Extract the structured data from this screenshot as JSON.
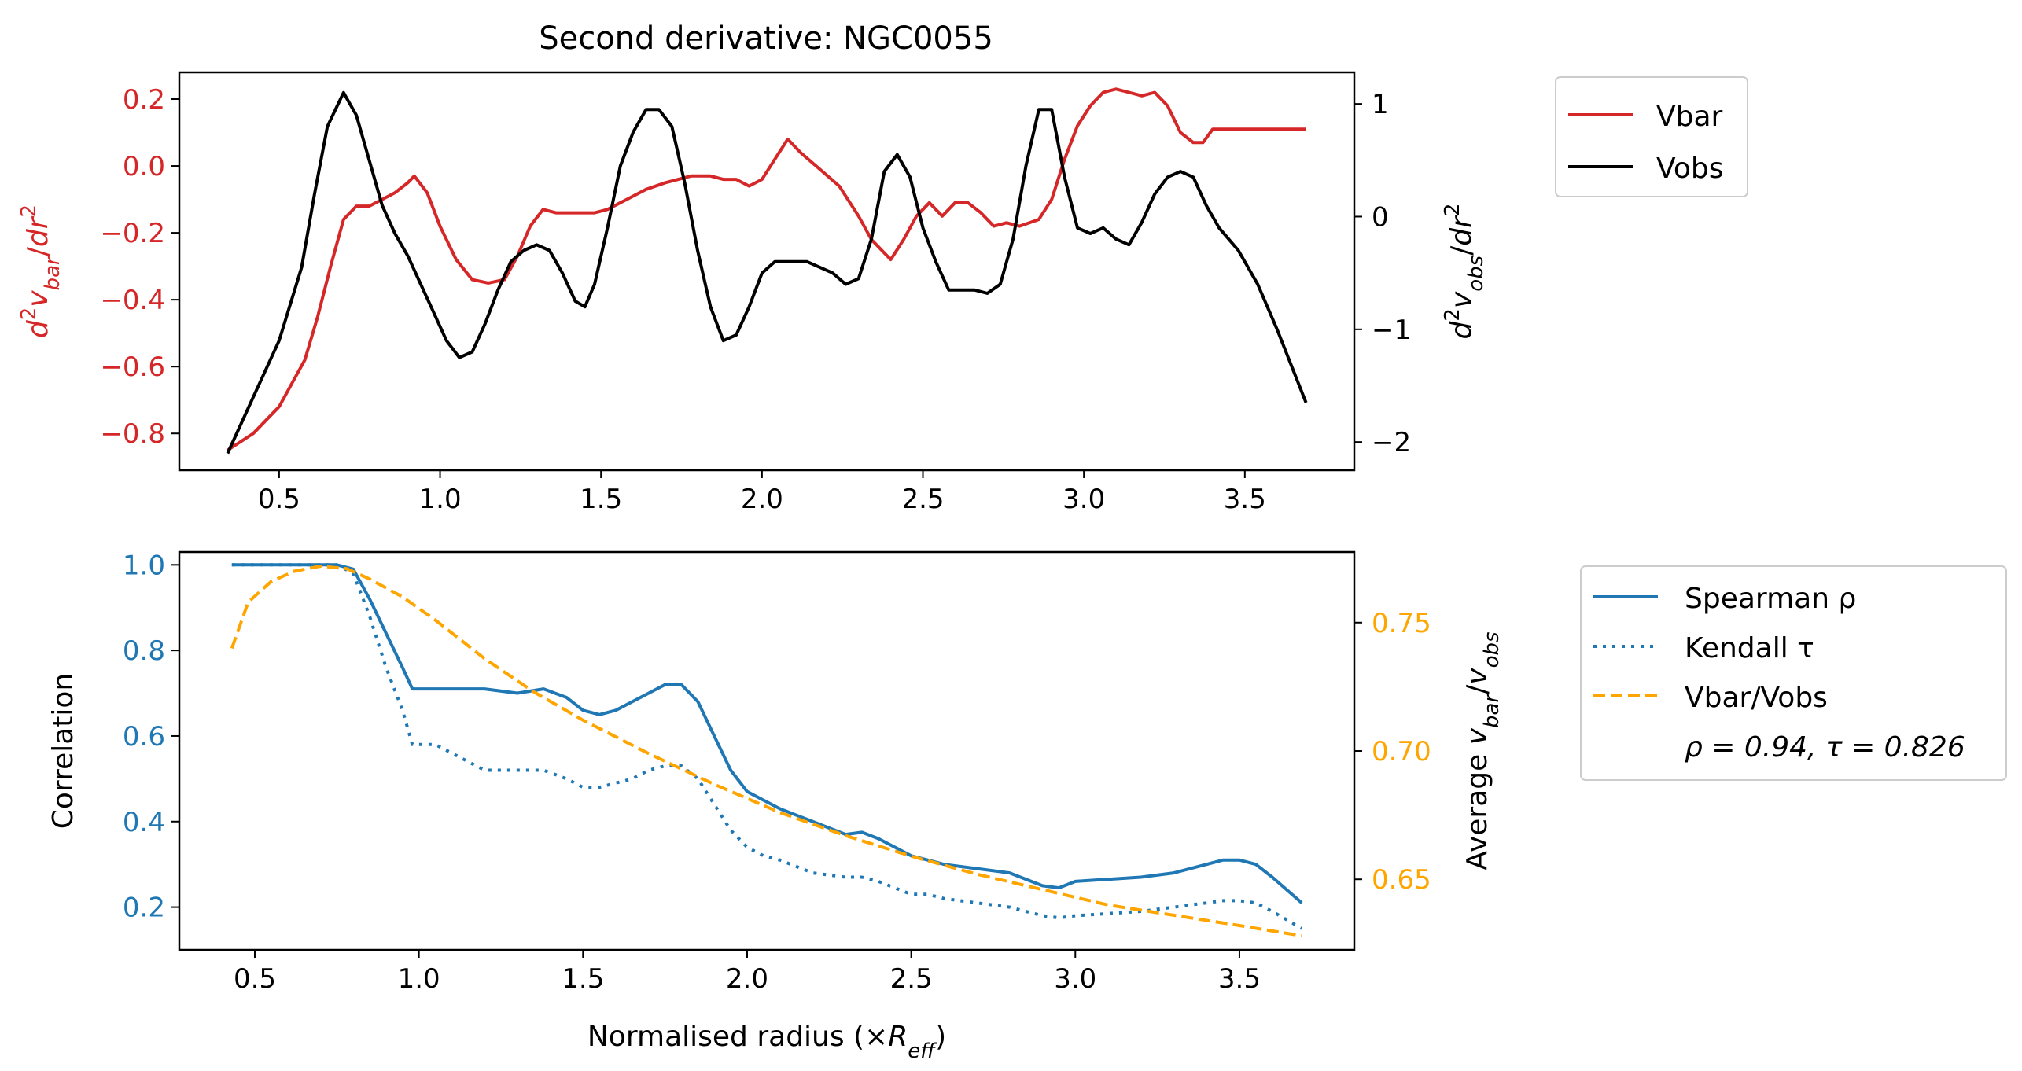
{
  "figure": {
    "top_title": "Second derivative: NGC0055",
    "colors": {
      "vbar": "#d62728",
      "vobs": "#000000",
      "spearman": "#1f77b4",
      "kendall": "#1f77b4",
      "ratio": "#ffa500",
      "left_axis_top": "#d62728",
      "left_axis_bottom": "#1f77b4",
      "right_axis_bottom": "#ffa500"
    }
  },
  "chart_data": [
    {
      "type": "line",
      "title": "Second derivative: NGC0055",
      "xlabel": "",
      "ylabel_left": "d²v_bar/dr²",
      "ylabel_right": "d²v_obs/dr²",
      "xlim": [
        0.19,
        3.84
      ],
      "ylim_left": [
        -0.91,
        0.28
      ],
      "ylim_right": [
        -2.25,
        1.28
      ],
      "xticks": [
        0.5,
        1.0,
        1.5,
        2.0,
        2.5,
        3.0,
        3.5
      ],
      "xtick_labels": [
        "0.5",
        "1.0",
        "1.5",
        "2.0",
        "2.5",
        "3.0",
        "3.5"
      ],
      "yticks_left": [
        0.2,
        0.0,
        -0.2,
        -0.4,
        -0.6,
        -0.8
      ],
      "ytick_labels_left": [
        "0.2",
        "0.0",
        "−0.2",
        "−0.4",
        "−0.6",
        "−0.8"
      ],
      "yticks_right": [
        1,
        0,
        -1,
        -2
      ],
      "ytick_labels_right": [
        "1",
        "0",
        "−1",
        "−2"
      ],
      "legend": {
        "placement": "outside-right",
        "entries": [
          "Vbar",
          "Vobs"
        ]
      },
      "grid": false,
      "series": [
        {
          "name": "Vbar",
          "axis": "left",
          "x": [
            0.34,
            0.42,
            0.5,
            0.58,
            0.62,
            0.66,
            0.7,
            0.74,
            0.78,
            0.82,
            0.86,
            0.9,
            0.92,
            0.96,
            1.0,
            1.05,
            1.1,
            1.15,
            1.2,
            1.24,
            1.28,
            1.32,
            1.36,
            1.4,
            1.44,
            1.48,
            1.52,
            1.58,
            1.64,
            1.7,
            1.78,
            1.84,
            1.88,
            1.92,
            1.96,
            2.0,
            2.04,
            2.08,
            2.12,
            2.18,
            2.24,
            2.3,
            2.34,
            2.4,
            2.44,
            2.48,
            2.52,
            2.56,
            2.6,
            2.64,
            2.68,
            2.72,
            2.76,
            2.8,
            2.86,
            2.9,
            2.94,
            2.98,
            3.02,
            3.06,
            3.1,
            3.14,
            3.18,
            3.22,
            3.26,
            3.3,
            3.34,
            3.37,
            3.4,
            3.5,
            3.6,
            3.69
          ],
          "y": [
            -0.85,
            -0.8,
            -0.72,
            -0.58,
            -0.45,
            -0.3,
            -0.16,
            -0.12,
            -0.12,
            -0.1,
            -0.08,
            -0.05,
            -0.03,
            -0.08,
            -0.18,
            -0.28,
            -0.34,
            -0.35,
            -0.34,
            -0.27,
            -0.18,
            -0.13,
            -0.14,
            -0.14,
            -0.14,
            -0.14,
            -0.13,
            -0.1,
            -0.07,
            -0.05,
            -0.03,
            -0.03,
            -0.04,
            -0.04,
            -0.06,
            -0.04,
            0.02,
            0.08,
            0.04,
            -0.01,
            -0.06,
            -0.15,
            -0.22,
            -0.28,
            -0.22,
            -0.15,
            -0.11,
            -0.15,
            -0.11,
            -0.11,
            -0.14,
            -0.18,
            -0.17,
            -0.18,
            -0.16,
            -0.1,
            0.02,
            0.12,
            0.18,
            0.22,
            0.23,
            0.22,
            0.21,
            0.22,
            0.18,
            0.1,
            0.07,
            0.07,
            0.11,
            0.11,
            0.11,
            0.11
          ]
        },
        {
          "name": "Vobs",
          "axis": "right",
          "x": [
            0.34,
            0.42,
            0.5,
            0.57,
            0.61,
            0.65,
            0.7,
            0.74,
            0.78,
            0.82,
            0.86,
            0.9,
            0.94,
            0.98,
            1.02,
            1.06,
            1.1,
            1.14,
            1.18,
            1.22,
            1.26,
            1.3,
            1.34,
            1.38,
            1.42,
            1.45,
            1.48,
            1.52,
            1.56,
            1.6,
            1.64,
            1.68,
            1.72,
            1.76,
            1.8,
            1.84,
            1.88,
            1.92,
            1.96,
            2.0,
            2.04,
            2.08,
            2.14,
            2.22,
            2.26,
            2.3,
            2.34,
            2.38,
            2.42,
            2.46,
            2.5,
            2.54,
            2.58,
            2.62,
            2.66,
            2.7,
            2.74,
            2.78,
            2.82,
            2.86,
            2.9,
            2.94,
            2.98,
            3.02,
            3.06,
            3.08,
            3.1,
            3.14,
            3.18,
            3.22,
            3.26,
            3.3,
            3.34,
            3.38,
            3.42,
            3.48,
            3.54,
            3.6,
            3.69
          ],
          "y": [
            -2.1,
            -1.6,
            -1.1,
            -0.45,
            0.2,
            0.8,
            1.1,
            0.9,
            0.5,
            0.1,
            -0.15,
            -0.35,
            -0.6,
            -0.85,
            -1.1,
            -1.25,
            -1.2,
            -0.95,
            -0.65,
            -0.4,
            -0.3,
            -0.25,
            -0.3,
            -0.5,
            -0.75,
            -0.8,
            -0.6,
            -0.1,
            0.45,
            0.75,
            0.95,
            0.95,
            0.8,
            0.3,
            -0.3,
            -0.8,
            -1.1,
            -1.05,
            -0.8,
            -0.5,
            -0.4,
            -0.4,
            -0.4,
            -0.5,
            -0.6,
            -0.55,
            -0.2,
            0.4,
            0.55,
            0.35,
            -0.1,
            -0.4,
            -0.65,
            -0.65,
            -0.65,
            -0.68,
            -0.6,
            -0.2,
            0.45,
            0.95,
            0.95,
            0.35,
            -0.1,
            -0.15,
            -0.1,
            -0.15,
            -0.2,
            -0.25,
            -0.05,
            0.2,
            0.35,
            0.4,
            0.35,
            0.1,
            -0.1,
            -0.3,
            -0.6,
            -1.0,
            -1.65
          ]
        }
      ]
    },
    {
      "type": "line",
      "title": "",
      "xlabel": "Normalised radius (×R_eff)",
      "ylabel_left": "Correlation",
      "ylabel_right": "Average v_bar/v_obs",
      "xlim": [
        0.27,
        3.85
      ],
      "ylim_left": [
        0.1,
        1.03
      ],
      "ylim_right": [
        0.6225,
        0.7775
      ],
      "xticks": [
        0.5,
        1.0,
        1.5,
        2.0,
        2.5,
        3.0,
        3.5
      ],
      "xtick_labels": [
        "0.5",
        "1.0",
        "1.5",
        "2.0",
        "2.5",
        "3.0",
        "3.5"
      ],
      "yticks_left": [
        1.0,
        0.8,
        0.6,
        0.4,
        0.2
      ],
      "ytick_labels_left": [
        "1.0",
        "0.8",
        "0.6",
        "0.4",
        "0.2"
      ],
      "yticks_right": [
        0.75,
        0.7,
        0.65
      ],
      "ytick_labels_right": [
        "0.75",
        "0.70",
        "0.65"
      ],
      "legend": {
        "placement": "outside-right",
        "entries": [
          "Spearman ρ",
          "Kendall τ",
          "Vbar/Vobs"
        ],
        "annotation": "ρ = 0.94, τ = 0.826"
      },
      "grid": false,
      "series": [
        {
          "name": "Spearman ρ",
          "axis": "left",
          "x": [
            0.43,
            0.6,
            0.75,
            0.8,
            0.85,
            0.9,
            0.95,
            0.98,
            1.05,
            1.1,
            1.2,
            1.3,
            1.38,
            1.45,
            1.5,
            1.55,
            1.6,
            1.65,
            1.7,
            1.75,
            1.8,
            1.85,
            1.9,
            1.95,
            2.0,
            2.05,
            2.1,
            2.2,
            2.3,
            2.35,
            2.4,
            2.5,
            2.55,
            2.6,
            2.7,
            2.8,
            2.9,
            2.95,
            3.0,
            3.1,
            3.2,
            3.3,
            3.4,
            3.45,
            3.5,
            3.55,
            3.6,
            3.69
          ],
          "y": [
            1.0,
            1.0,
            1.0,
            0.99,
            0.92,
            0.84,
            0.76,
            0.71,
            0.71,
            0.71,
            0.71,
            0.7,
            0.71,
            0.69,
            0.66,
            0.65,
            0.66,
            0.68,
            0.7,
            0.72,
            0.72,
            0.68,
            0.6,
            0.52,
            0.47,
            0.45,
            0.43,
            0.4,
            0.37,
            0.375,
            0.36,
            0.32,
            0.31,
            0.3,
            0.29,
            0.28,
            0.25,
            0.245,
            0.26,
            0.265,
            0.27,
            0.28,
            0.3,
            0.31,
            0.31,
            0.3,
            0.27,
            0.21
          ]
        },
        {
          "name": "Kendall τ",
          "axis": "left",
          "x": [
            0.43,
            0.6,
            0.75,
            0.8,
            0.85,
            0.9,
            0.95,
            0.98,
            1.05,
            1.1,
            1.2,
            1.3,
            1.38,
            1.45,
            1.5,
            1.55,
            1.6,
            1.65,
            1.7,
            1.75,
            1.8,
            1.85,
            1.9,
            1.95,
            2.0,
            2.05,
            2.1,
            2.2,
            2.3,
            2.35,
            2.4,
            2.5,
            2.55,
            2.6,
            2.7,
            2.8,
            2.9,
            2.95,
            3.0,
            3.1,
            3.2,
            3.3,
            3.4,
            3.45,
            3.5,
            3.55,
            3.6,
            3.69
          ],
          "y": [
            1.0,
            1.0,
            1.0,
            0.98,
            0.88,
            0.76,
            0.66,
            0.58,
            0.58,
            0.56,
            0.52,
            0.52,
            0.52,
            0.5,
            0.48,
            0.48,
            0.49,
            0.5,
            0.52,
            0.53,
            0.53,
            0.5,
            0.44,
            0.38,
            0.34,
            0.32,
            0.31,
            0.28,
            0.27,
            0.27,
            0.26,
            0.23,
            0.23,
            0.22,
            0.21,
            0.2,
            0.18,
            0.175,
            0.18,
            0.185,
            0.19,
            0.2,
            0.21,
            0.215,
            0.215,
            0.21,
            0.19,
            0.15
          ]
        },
        {
          "name": "Vbar/Vobs",
          "axis": "right",
          "x": [
            0.43,
            0.48,
            0.55,
            0.62,
            0.7,
            0.78,
            0.85,
            0.95,
            1.05,
            1.2,
            1.35,
            1.5,
            1.7,
            1.9,
            2.1,
            2.3,
            2.5,
            2.7,
            2.9,
            3.1,
            3.3,
            3.5,
            3.69
          ],
          "y": [
            0.74,
            0.758,
            0.766,
            0.77,
            0.772,
            0.771,
            0.767,
            0.76,
            0.751,
            0.736,
            0.723,
            0.712,
            0.699,
            0.687,
            0.676,
            0.667,
            0.659,
            0.652,
            0.646,
            0.64,
            0.636,
            0.632,
            0.628
          ]
        }
      ]
    }
  ]
}
